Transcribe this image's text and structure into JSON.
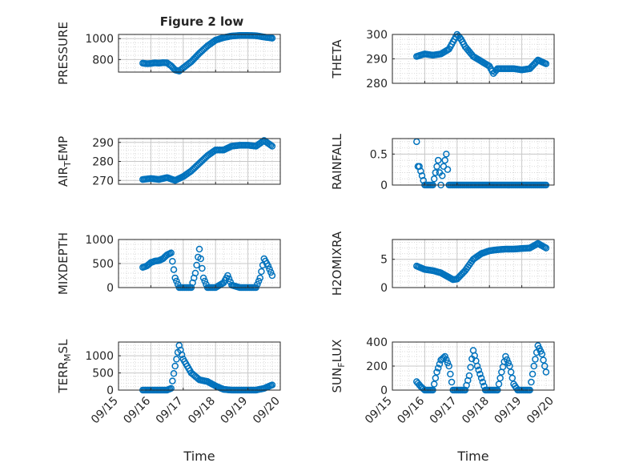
{
  "figure": {
    "title": "Figure 2 low",
    "background": "#ffffff",
    "marker_color": "#0072BD",
    "grid_color": "#d9d9d9",
    "axes_color": "#262626"
  },
  "chart_data": [
    {
      "type": "scatter",
      "marker": "circle",
      "ylabel": "PRESSURE",
      "xlim": [
        "09/15",
        "09/20"
      ],
      "ylim": [
        680,
        1040
      ],
      "yticks": [
        800,
        1000
      ],
      "xticklabels_shown": false,
      "grid": true,
      "minor_grid": true,
      "series": [
        {
          "x": [
            "09/15 18:00",
            "09/15 21:00",
            "09/16 00:00",
            "09/16 03:00",
            "09/16 06:00",
            "09/16 09:00",
            "09/16 12:00",
            "09/16 15:00",
            "09/16 18:00",
            "09/16 21:00",
            "09/17 00:00",
            "09/17 06:00",
            "09/17 12:00",
            "09/17 18:00",
            "09/18 00:00",
            "09/18 06:00",
            "09/18 12:00",
            "09/18 18:00",
            "09/19 00:00",
            "09/19 06:00",
            "09/19 12:00",
            "09/19 18:00"
          ],
          "y": [
            765,
            760,
            762,
            768,
            765,
            770,
            768,
            740,
            700,
            690,
            720,
            780,
            860,
            930,
            985,
            1010,
            1025,
            1030,
            1030,
            1028,
            1015,
            1005
          ]
        }
      ]
    },
    {
      "type": "scatter",
      "marker": "circle",
      "ylabel": "THETA",
      "xlim": [
        "09/15",
        "09/20"
      ],
      "ylim": [
        280,
        300
      ],
      "yticks": [
        280,
        290,
        300
      ],
      "xticklabels_shown": false,
      "grid": true,
      "minor_grid": true,
      "series": [
        {
          "x": [
            "09/15 18:00",
            "09/16 00:00",
            "09/16 06:00",
            "09/16 12:00",
            "09/16 18:00",
            "09/16 21:00",
            "09/17 00:00",
            "09/17 03:00",
            "09/17 06:00",
            "09/17 12:00",
            "09/17 18:00",
            "09/18 00:00",
            "09/18 03:00",
            "09/18 06:00",
            "09/18 12:00",
            "09/18 18:00",
            "09/19 00:00",
            "09/19 06:00",
            "09/19 12:00",
            "09/19 18:00"
          ],
          "y": [
            291,
            292,
            291.5,
            292,
            294,
            297,
            300,
            298,
            295,
            291,
            289,
            287,
            284,
            286,
            286,
            286,
            285.5,
            286,
            289.5,
            288
          ]
        }
      ]
    },
    {
      "type": "scatter",
      "marker": "circle",
      "ylabel": "AIR_TEMP",
      "ylabel_display": {
        "base": "AIR",
        "sub": "T",
        "rest": "EMP"
      },
      "xlim": [
        "09/15",
        "09/20"
      ],
      "ylim": [
        268,
        292
      ],
      "yticks": [
        270,
        280,
        290
      ],
      "xticklabels_shown": false,
      "grid": true,
      "minor_grid": true,
      "series": [
        {
          "x": [
            "09/15 18:00",
            "09/16 00:00",
            "09/16 06:00",
            "09/16 12:00",
            "09/16 18:00",
            "09/16 21:00",
            "09/17 00:00",
            "09/17 06:00",
            "09/17 12:00",
            "09/17 18:00",
            "09/18 00:00",
            "09/18 06:00",
            "09/18 12:00",
            "09/18 18:00",
            "09/19 00:00",
            "09/19 06:00",
            "09/19 12:00",
            "09/19 18:00"
          ],
          "y": [
            270.5,
            271,
            270.5,
            271.5,
            270,
            271,
            272,
            275,
            279,
            283,
            286,
            286,
            288,
            288.5,
            288.5,
            288,
            291,
            288
          ]
        }
      ]
    },
    {
      "type": "scatter",
      "marker": "circle",
      "ylabel": "RAINFALL",
      "xlim": [
        "09/15",
        "09/20"
      ],
      "ylim": [
        0,
        0.75
      ],
      "yticks": [
        0,
        0.5
      ],
      "xticklabels_shown": false,
      "grid": true,
      "minor_grid": true,
      "series": [
        {
          "x": [
            "09/15 18:00",
            "09/15 19:00",
            "09/15 20:00",
            "09/16 00:00",
            "09/16 06:00",
            "09/16 08:00",
            "09/16 10:00",
            "09/16 12:00",
            "09/16 14:00",
            "09/16 16:00",
            "09/16 18:00",
            "09/17 00:00",
            "09/17 06:00",
            "09/17 12:00",
            "09/18 00:00",
            "09/18 12:00",
            "09/19 00:00",
            "09/19 12:00",
            "09/19 18:00"
          ],
          "y": [
            0.7,
            0.3,
            0.3,
            0,
            0,
            0.2,
            0.4,
            0,
            0.3,
            0.5,
            0,
            0,
            0,
            0,
            0,
            0,
            0,
            0,
            0
          ]
        }
      ]
    },
    {
      "type": "scatter",
      "marker": "circle",
      "ylabel": "MIXDEPTH",
      "xlim": [
        "09/15",
        "09/20"
      ],
      "ylim": [
        0,
        1000
      ],
      "yticks": [
        0,
        500,
        1000
      ],
      "xticklabels_shown": false,
      "grid": true,
      "minor_grid": true,
      "series": [
        {
          "x": [
            "09/15 18:00",
            "09/15 21:00",
            "09/16 00:00",
            "09/16 03:00",
            "09/16 06:00",
            "09/16 09:00",
            "09/16 12:00",
            "09/16 15:00",
            "09/16 18:00",
            "09/16 21:00",
            "09/17 00:00",
            "09/17 06:00",
            "09/17 09:00",
            "09/17 12:00",
            "09/17 15:00",
            "09/17 18:00",
            "09/18 00:00",
            "09/18 06:00",
            "09/18 09:00",
            "09/18 12:00",
            "09/18 18:00",
            "09/19 00:00",
            "09/19 06:00",
            "09/19 09:00",
            "09/19 12:00",
            "09/19 15:00",
            "09/19 18:00"
          ],
          "y": [
            420,
            450,
            520,
            550,
            560,
            600,
            680,
            720,
            200,
            0,
            0,
            0,
            300,
            800,
            200,
            0,
            0,
            100,
            250,
            50,
            0,
            0,
            0,
            200,
            600,
            450,
            250
          ]
        }
      ]
    },
    {
      "type": "scatter",
      "marker": "circle",
      "ylabel": "H2OMIXRA",
      "xlim": [
        "09/15",
        "09/20"
      ],
      "ylim": [
        0,
        8.5
      ],
      "yticks": [
        0,
        5
      ],
      "xticklabels_shown": false,
      "grid": true,
      "minor_grid": true,
      "series": [
        {
          "x": [
            "09/15 18:00",
            "09/16 00:00",
            "09/16 06:00",
            "09/16 12:00",
            "09/16 18:00",
            "09/16 21:00",
            "09/17 00:00",
            "09/17 06:00",
            "09/17 12:00",
            "09/17 18:00",
            "09/18 00:00",
            "09/18 06:00",
            "09/18 12:00",
            "09/18 18:00",
            "09/19 00:00",
            "09/19 06:00",
            "09/19 12:00",
            "09/19 18:00"
          ],
          "y": [
            3.8,
            3.2,
            3.0,
            2.6,
            1.8,
            1.4,
            1.5,
            3.0,
            5.0,
            6.0,
            6.5,
            6.7,
            6.8,
            6.8,
            6.9,
            7.0,
            7.8,
            7.0
          ]
        }
      ]
    },
    {
      "type": "scatter",
      "marker": "circle",
      "ylabel": "TERR_MSL",
      "ylabel_display": {
        "base": "TERR",
        "sub": "M",
        "rest": "SL"
      },
      "xlim": [
        "09/15",
        "09/20"
      ],
      "xlabel": "Time",
      "xticklabels": [
        "09/15",
        "09/16",
        "09/17",
        "09/18",
        "09/19",
        "09/20"
      ],
      "ylim": [
        0,
        1400
      ],
      "yticks": [
        0,
        500,
        1000
      ],
      "grid": true,
      "minor_grid": true,
      "series": [
        {
          "x": [
            "09/15 18:00",
            "09/16 00:00",
            "09/16 06:00",
            "09/16 12:00",
            "09/16 15:00",
            "09/16 18:00",
            "09/16 21:00",
            "09/17 00:00",
            "09/17 03:00",
            "09/17 06:00",
            "09/17 12:00",
            "09/17 18:00",
            "09/18 00:00",
            "09/18 06:00",
            "09/18 12:00",
            "09/19 00:00",
            "09/19 06:00",
            "09/19 12:00",
            "09/19 18:00"
          ],
          "y": [
            0,
            0,
            0,
            0,
            50,
            700,
            1300,
            900,
            700,
            500,
            300,
            250,
            120,
            20,
            0,
            0,
            0,
            50,
            150
          ]
        }
      ]
    },
    {
      "type": "scatter",
      "marker": "circle",
      "ylabel": "SUN_FLUX",
      "ylabel_display": {
        "base": "SUN",
        "sub": "F",
        "rest": "LUX"
      },
      "xlim": [
        "09/15",
        "09/20"
      ],
      "xlabel": "Time",
      "xticklabels": [
        "09/15",
        "09/16",
        "09/17",
        "09/18",
        "09/19",
        "09/20"
      ],
      "ylim": [
        0,
        400
      ],
      "yticks": [
        0,
        200,
        400
      ],
      "grid": true,
      "minor_grid": true,
      "series": [
        {
          "x": [
            "09/15 18:00",
            "09/15 21:00",
            "09/16 00:00",
            "09/16 06:00",
            "09/16 09:00",
            "09/16 12:00",
            "09/16 15:00",
            "09/16 18:00",
            "09/16 21:00",
            "09/17 00:00",
            "09/17 06:00",
            "09/17 09:00",
            "09/17 12:00",
            "09/17 15:00",
            "09/17 18:00",
            "09/17 21:00",
            "09/18 00:00",
            "09/18 06:00",
            "09/18 09:00",
            "09/18 12:00",
            "09/18 15:00",
            "09/18 18:00",
            "09/18 21:00",
            "09/19 00:00",
            "09/19 06:00",
            "09/19 09:00",
            "09/19 12:00",
            "09/19 15:00",
            "09/19 18:00"
          ],
          "y": [
            70,
            30,
            0,
            0,
            150,
            250,
            280,
            200,
            0,
            0,
            0,
            120,
            330,
            200,
            100,
            0,
            0,
            0,
            150,
            280,
            200,
            50,
            0,
            0,
            0,
            200,
            370,
            300,
            150
          ]
        }
      ]
    }
  ]
}
